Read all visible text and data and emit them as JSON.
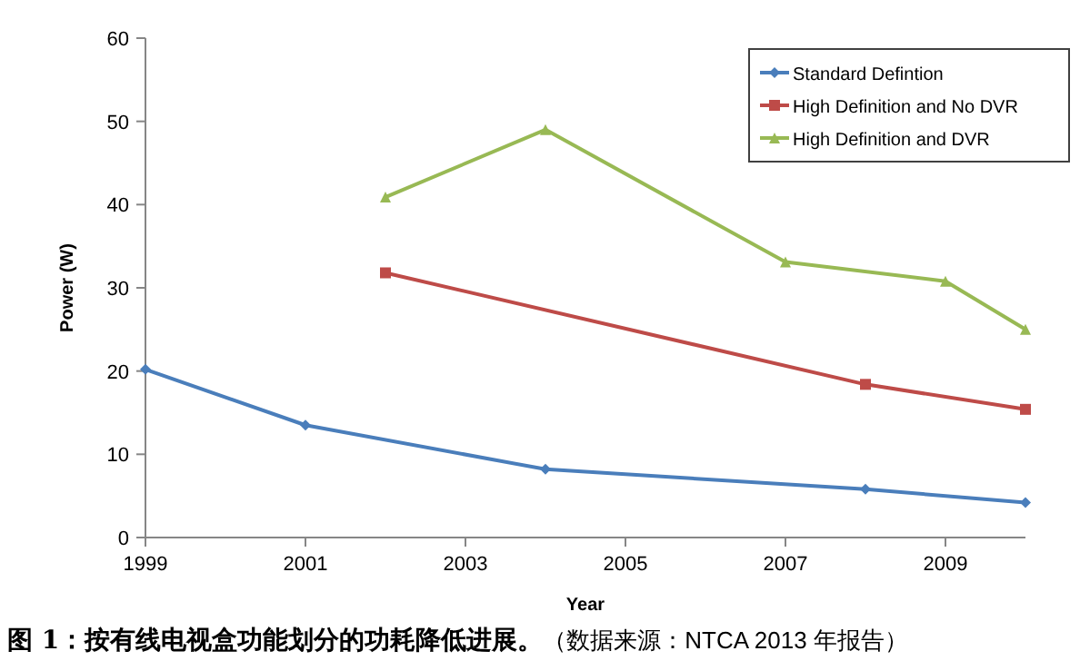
{
  "chart_data": {
    "type": "line",
    "title": "图 1：按有线电视盒功能划分的功耗降低进展。",
    "annotations": [
      "（数据来源：NTCA 2013 年报告）"
    ],
    "xlabel": "Year",
    "ylabel": "Power (W)",
    "xlim": [
      1999,
      2010
    ],
    "xticks": [
      1999,
      2001,
      2003,
      2005,
      2007,
      2009
    ],
    "ylim": [
      0,
      60
    ],
    "yticks": [
      0,
      10,
      20,
      30,
      40,
      50,
      60
    ],
    "grid": false,
    "legend": "top right",
    "series": [
      {
        "name": "Standard Defintion",
        "color": "#4a7ebb",
        "marker": "diamond",
        "x": [
          1999,
          2001,
          2004,
          2008,
          2010
        ],
        "values": [
          20.2,
          13.5,
          8.2,
          5.8,
          4.2
        ]
      },
      {
        "name": "High Definition and No DVR",
        "color": "#be4b48",
        "marker": "square",
        "x": [
          2002,
          2008,
          2010
        ],
        "values": [
          31.8,
          18.4,
          15.4
        ]
      },
      {
        "name": "High Definition and DVR",
        "color": "#98b954",
        "marker": "triangle",
        "x": [
          2002,
          2004,
          2007,
          2009,
          2010
        ],
        "values": [
          40.9,
          49,
          33.1,
          30.8,
          25
        ]
      }
    ]
  }
}
